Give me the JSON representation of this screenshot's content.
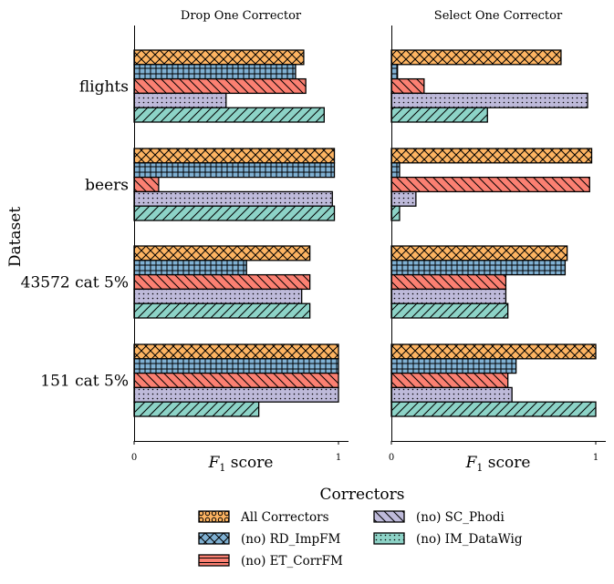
{
  "figure": {
    "ylabel": "Dataset",
    "legend_title": "Correctors",
    "legend_placement": "bottom-center"
  },
  "chart_data": [
    {
      "type": "bar",
      "orientation": "horizontal",
      "title": "Drop One Corrector",
      "xlabel": "F1 score",
      "xlabel_main": "F",
      "xlabel_sub": "1",
      "xlabel_rest": " score",
      "xlim": [
        0,
        1
      ],
      "xticks": [
        "0",
        "1"
      ],
      "categories": [
        "flights",
        "beers",
        "43572 cat 5%",
        "151 cat 5%"
      ],
      "series": [
        {
          "name": "All Correctors",
          "values": [
            0.83,
            0.98,
            0.86,
            1.0
          ]
        },
        {
          "name": "(no) RD_ImpFM",
          "values": [
            0.79,
            0.98,
            0.55,
            1.0
          ]
        },
        {
          "name": "(no) ET_CorrFM",
          "values": [
            0.84,
            0.12,
            0.86,
            1.0
          ]
        },
        {
          "name": "(no) SC_Phodi",
          "values": [
            0.45,
            0.97,
            0.82,
            1.0
          ]
        },
        {
          "name": "(no) IM_DataWig",
          "values": [
            0.93,
            0.98,
            0.86,
            0.61
          ]
        }
      ]
    },
    {
      "type": "bar",
      "orientation": "horizontal",
      "title": "Select One Corrector",
      "xlabel": "F1 score",
      "xlabel_main": "F",
      "xlabel_sub": "1",
      "xlabel_rest": " score",
      "xlim": [
        0,
        1
      ],
      "xticks": [
        "0",
        "1"
      ],
      "categories": [
        "flights",
        "beers",
        "43572 cat 5%",
        "151 cat 5%"
      ],
      "series": [
        {
          "name": "All Correctors",
          "values": [
            0.83,
            0.98,
            0.86,
            1.0
          ]
        },
        {
          "name": "(no) RD_ImpFM",
          "values": [
            0.03,
            0.04,
            0.85,
            0.61
          ]
        },
        {
          "name": "(no) ET_CorrFM",
          "values": [
            0.16,
            0.97,
            0.56,
            0.57
          ]
        },
        {
          "name": "(no) SC_Phodi",
          "values": [
            0.96,
            0.12,
            0.56,
            0.59
          ]
        },
        {
          "name": "(no) IM_DataWig",
          "values": [
            0.47,
            0.04,
            0.57,
            1.0
          ]
        }
      ]
    }
  ],
  "legend": {
    "items": [
      {
        "label": "All Correctors",
        "color": "#fdb462",
        "pattern": "circles"
      },
      {
        "label": "(no) RD_ImpFM",
        "color": "#80b1d3",
        "pattern": "cross-x"
      },
      {
        "label": "(no) ET_CorrFM",
        "color": "#fb8072",
        "pattern": "horizontal"
      },
      {
        "label": "(no) SC_Phodi",
        "color": "#bebada",
        "pattern": "backslash"
      },
      {
        "label": "(no) IM_DataWig",
        "color": "#8dd3c7",
        "pattern": "dots"
      }
    ]
  },
  "bar_styles": [
    {
      "color": "#fdb462",
      "pattern": "cross-x"
    },
    {
      "color": "#80b1d3",
      "pattern": "grid"
    },
    {
      "color": "#fb8072",
      "pattern": "backslash"
    },
    {
      "color": "#bebada",
      "pattern": "dots"
    },
    {
      "color": "#8dd3c7",
      "pattern": "slash"
    }
  ]
}
